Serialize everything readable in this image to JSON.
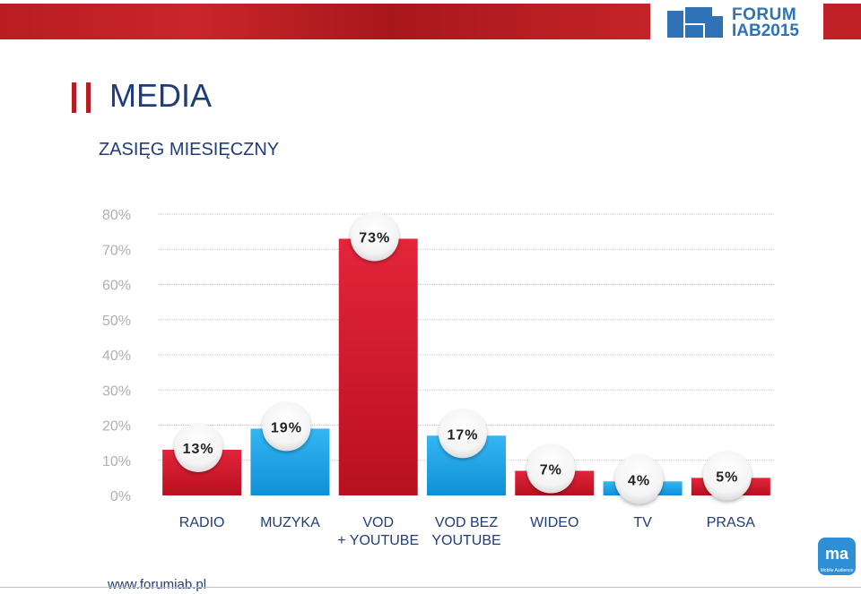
{
  "header": {
    "logo_line1": "FORUM",
    "logo_line2": "IAB2015"
  },
  "page": {
    "title": "MEDIA",
    "subtitle": "ZASIĘG MIESIĘCZNY",
    "footer_url": "www.forumiab.pl",
    "corner_logo_text": "ma",
    "corner_logo_caption": "Mobile Audience"
  },
  "colors": {
    "red": "#d7182a",
    "blue": "#1aa3e8",
    "axis_text": "#b0b0b0",
    "label_text": "#1f3d7a"
  },
  "chart_data": {
    "type": "bar",
    "title": "ZASIĘG MIESIĘCZNY",
    "categories": [
      [
        "RADIO"
      ],
      [
        "MUZYKA"
      ],
      [
        "VOD",
        "+ YOUTUBE"
      ],
      [
        "VOD BEZ",
        "YOUTUBE"
      ],
      [
        "WIDEO"
      ],
      [
        "TV"
      ],
      [
        "PRASA"
      ]
    ],
    "values": [
      13,
      19,
      73,
      17,
      7,
      4,
      5
    ],
    "value_labels": [
      "13%",
      "19%",
      "73%",
      "17%",
      "7%",
      "4%",
      "5%"
    ],
    "bar_colors": [
      "red",
      "blue",
      "red",
      "blue",
      "red",
      "blue",
      "red"
    ],
    "ylim": [
      0,
      80
    ],
    "yticks": [
      "0%",
      "10%",
      "20%",
      "30%",
      "40%",
      "50%",
      "60%",
      "70%",
      "80%"
    ],
    "grid": true,
    "legend": "none"
  }
}
